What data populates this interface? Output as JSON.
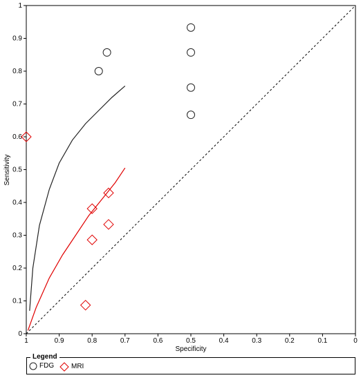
{
  "chart_data": {
    "type": "scatter",
    "title": "",
    "xlabel": "Specificity",
    "ylabel": "Sensitivity",
    "xlim": [
      1,
      0
    ],
    "ylim": [
      0,
      1
    ],
    "x_reversed": true,
    "x_ticks": [
      1,
      0.9,
      0.8,
      0.7,
      0.6,
      0.5,
      0.4,
      0.3,
      0.2,
      0.1,
      0
    ],
    "x_tick_labels": [
      "1",
      "0.9",
      "0.8",
      "0.7",
      "0.6",
      "0.5",
      "0.4",
      "0.3",
      "0.2",
      "0.1",
      "0"
    ],
    "y_ticks": [
      0,
      0.1,
      0.2,
      0.3,
      0.4,
      0.5,
      0.6,
      0.7,
      0.8,
      0.9,
      1
    ],
    "y_tick_labels": [
      "0",
      "0.1",
      "0.2",
      "0.3",
      "0.4",
      "0.5",
      "0.6",
      "0.7",
      "0.8",
      "0.9",
      "1"
    ],
    "grid": false,
    "diagonal_reference": true,
    "legend": {
      "title": "Legend",
      "placement": "bottom"
    },
    "series": [
      {
        "name": "FDG",
        "marker": "circle",
        "color": "#222222",
        "points": [
          {
            "x": 0.755,
            "y": 0.857
          },
          {
            "x": 0.78,
            "y": 0.8
          },
          {
            "x": 0.5,
            "y": 0.933
          },
          {
            "x": 0.5,
            "y": 0.857
          },
          {
            "x": 0.5,
            "y": 0.75
          },
          {
            "x": 0.5,
            "y": 0.667
          }
        ],
        "curve": [
          {
            "x": 0.99,
            "y": 0.07
          },
          {
            "x": 0.98,
            "y": 0.2
          },
          {
            "x": 0.96,
            "y": 0.33
          },
          {
            "x": 0.93,
            "y": 0.44
          },
          {
            "x": 0.9,
            "y": 0.52
          },
          {
            "x": 0.86,
            "y": 0.59
          },
          {
            "x": 0.82,
            "y": 0.64
          },
          {
            "x": 0.78,
            "y": 0.68
          },
          {
            "x": 0.74,
            "y": 0.72
          },
          {
            "x": 0.7,
            "y": 0.755
          }
        ]
      },
      {
        "name": "MRI",
        "marker": "diamond",
        "color": "#e00000",
        "points": [
          {
            "x": 1.0,
            "y": 0.6
          },
          {
            "x": 0.75,
            "y": 0.429
          },
          {
            "x": 0.8,
            "y": 0.381
          },
          {
            "x": 0.75,
            "y": 0.333
          },
          {
            "x": 0.8,
            "y": 0.286
          },
          {
            "x": 0.82,
            "y": 0.087
          }
        ],
        "curve": [
          {
            "x": 0.995,
            "y": 0.01
          },
          {
            "x": 0.97,
            "y": 0.08
          },
          {
            "x": 0.93,
            "y": 0.17
          },
          {
            "x": 0.89,
            "y": 0.24
          },
          {
            "x": 0.85,
            "y": 0.3
          },
          {
            "x": 0.81,
            "y": 0.36
          },
          {
            "x": 0.77,
            "y": 0.41
          },
          {
            "x": 0.73,
            "y": 0.46
          },
          {
            "x": 0.7,
            "y": 0.505
          }
        ]
      }
    ]
  }
}
